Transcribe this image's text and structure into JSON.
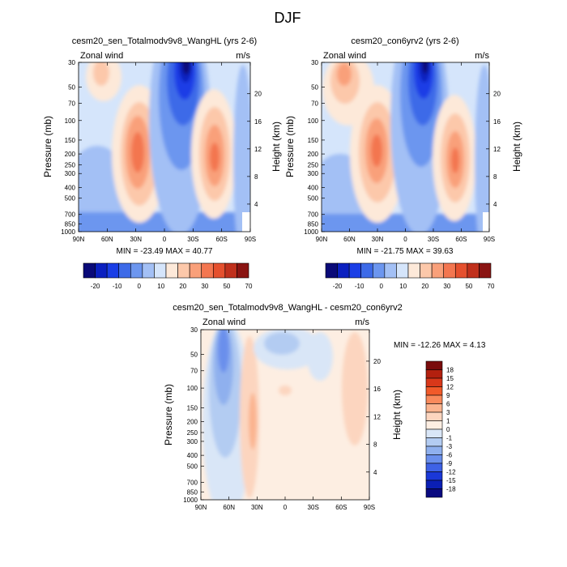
{
  "page": {
    "title": "DJF"
  },
  "chart_data": [
    {
      "type": "heatmap",
      "id": "panel-sen",
      "title": "cesm20_sen_Totalmodv9v8_WangHL (yrs 2-6)",
      "left_label": "Zonal wind",
      "right_label": "m/s",
      "ylabel": "Pressure (mb)",
      "ylabel_right": "Height (km)",
      "x_ticks": [
        "90N",
        "60N",
        "30N",
        "0",
        "30S",
        "60S",
        "90S"
      ],
      "y_ticks": [
        "30",
        "50",
        "70",
        "100",
        "150",
        "200",
        "250",
        "300",
        "400",
        "500",
        "700",
        "850",
        "1000"
      ],
      "y_ticks_right": [
        "4",
        "8",
        "12",
        "16",
        "20"
      ],
      "minmax": "MIN = -23.49  MAX =  40.77",
      "colorbar": {
        "orientation": "horizontal",
        "labels": [
          "-20",
          "-10",
          "0",
          "10",
          "20",
          "30",
          "50",
          "70"
        ],
        "colors": [
          "#0a0a78",
          "#0b20c0",
          "#1a3ee6",
          "#3d6ae8",
          "#6c96ef",
          "#a3c0f5",
          "#d5e5fb",
          "#fde9d9",
          "#fcc8aa",
          "#f9a07a",
          "#f37650",
          "#e5502e",
          "#c0301c",
          "#8a1412"
        ]
      }
    },
    {
      "type": "heatmap",
      "id": "panel-con",
      "title": "cesm20_con6yrv2 (yrs 2-6)",
      "left_label": "Zonal wind",
      "right_label": "m/s",
      "ylabel": "Pressure (mb)",
      "ylabel_right": "Height (km)",
      "x_ticks": [
        "90N",
        "60N",
        "30N",
        "0",
        "30S",
        "60S",
        "90S"
      ],
      "y_ticks": [
        "30",
        "50",
        "70",
        "100",
        "150",
        "200",
        "250",
        "300",
        "400",
        "500",
        "700",
        "850",
        "1000"
      ],
      "y_ticks_right": [
        "4",
        "8",
        "12",
        "16",
        "20"
      ],
      "minmax": "MIN = -21.75  MAX =  39.63",
      "colorbar": {
        "orientation": "horizontal",
        "labels": [
          "-20",
          "-10",
          "0",
          "10",
          "20",
          "30",
          "50",
          "70"
        ],
        "colors": [
          "#0a0a78",
          "#0b20c0",
          "#1a3ee6",
          "#3d6ae8",
          "#6c96ef",
          "#a3c0f5",
          "#d5e5fb",
          "#fde9d9",
          "#fcc8aa",
          "#f9a07a",
          "#f37650",
          "#e5502e",
          "#c0301c",
          "#8a1412"
        ]
      }
    },
    {
      "type": "heatmap",
      "id": "panel-diff",
      "title": "cesm20_sen_Totalmodv9v8_WangHL - cesm20_con6yrv2",
      "left_label": "Zonal wind",
      "right_label": "m/s",
      "ylabel": "Pressure (mb)",
      "ylabel_right": "Height (km)",
      "x_ticks": [
        "90N",
        "60N",
        "30N",
        "0",
        "30S",
        "60S",
        "90S"
      ],
      "y_ticks": [
        "30",
        "50",
        "70",
        "100",
        "150",
        "200",
        "250",
        "300",
        "400",
        "500",
        "700",
        "850",
        "1000"
      ],
      "y_ticks_right": [
        "4",
        "8",
        "12",
        "16",
        "20"
      ],
      "minmax": "MIN = -12.26  MAX =   4.13",
      "colorbar": {
        "orientation": "vertical",
        "labels": [
          "18",
          "15",
          "12",
          "9",
          "6",
          "3",
          "1",
          "0",
          "-1",
          "-3",
          "-6",
          "-9",
          "-12",
          "-15",
          "-18"
        ],
        "colors": [
          "#7a0c0c",
          "#b3200f",
          "#d9381a",
          "#f15a2a",
          "#f98a5c",
          "#fbb48f",
          "#fcd5bf",
          "#fdeee2",
          "#d9e6f7",
          "#b3ccf2",
          "#8fb0ee",
          "#6a8fec",
          "#3e62e6",
          "#1a38d8",
          "#0b1fb5",
          "#0a0a80"
        ]
      }
    }
  ]
}
